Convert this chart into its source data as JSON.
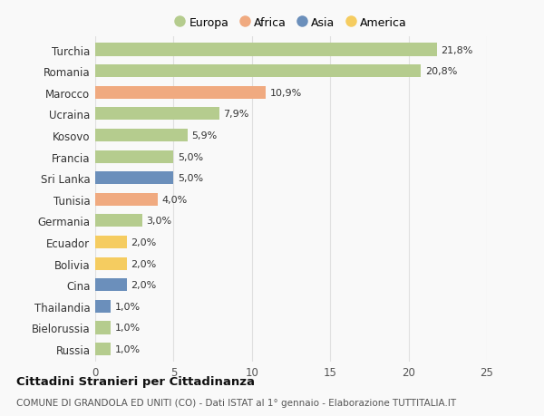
{
  "countries": [
    "Turchia",
    "Romania",
    "Marocco",
    "Ucraina",
    "Kosovo",
    "Francia",
    "Sri Lanka",
    "Tunisia",
    "Germania",
    "Ecuador",
    "Bolivia",
    "Cina",
    "Thailandia",
    "Bielorussia",
    "Russia"
  ],
  "values": [
    21.8,
    20.8,
    10.9,
    7.9,
    5.9,
    5.0,
    5.0,
    4.0,
    3.0,
    2.0,
    2.0,
    2.0,
    1.0,
    1.0,
    1.0
  ],
  "labels": [
    "21,8%",
    "20,8%",
    "10,9%",
    "7,9%",
    "5,9%",
    "5,0%",
    "5,0%",
    "4,0%",
    "3,0%",
    "2,0%",
    "2,0%",
    "2,0%",
    "1,0%",
    "1,0%",
    "1,0%"
  ],
  "continents": [
    "Europa",
    "Europa",
    "Africa",
    "Europa",
    "Europa",
    "Europa",
    "Asia",
    "Africa",
    "Europa",
    "America",
    "America",
    "Asia",
    "Asia",
    "Europa",
    "Europa"
  ],
  "continent_colors": {
    "Europa": "#b5cc8e",
    "Africa": "#f0aa80",
    "Asia": "#6b8fbb",
    "America": "#f5cc60"
  },
  "legend_order": [
    "Europa",
    "Africa",
    "Asia",
    "America"
  ],
  "title": "Cittadini Stranieri per Cittadinanza",
  "subtitle": "COMUNE DI GRANDOLA ED UNITI (CO) - Dati ISTAT al 1° gennaio - Elaborazione TUTTITALIA.IT",
  "xlim": [
    0,
    25
  ],
  "xticks": [
    0,
    5,
    10,
    15,
    20,
    25
  ],
  "background_color": "#f9f9f9",
  "grid_color": "#e0e0e0"
}
